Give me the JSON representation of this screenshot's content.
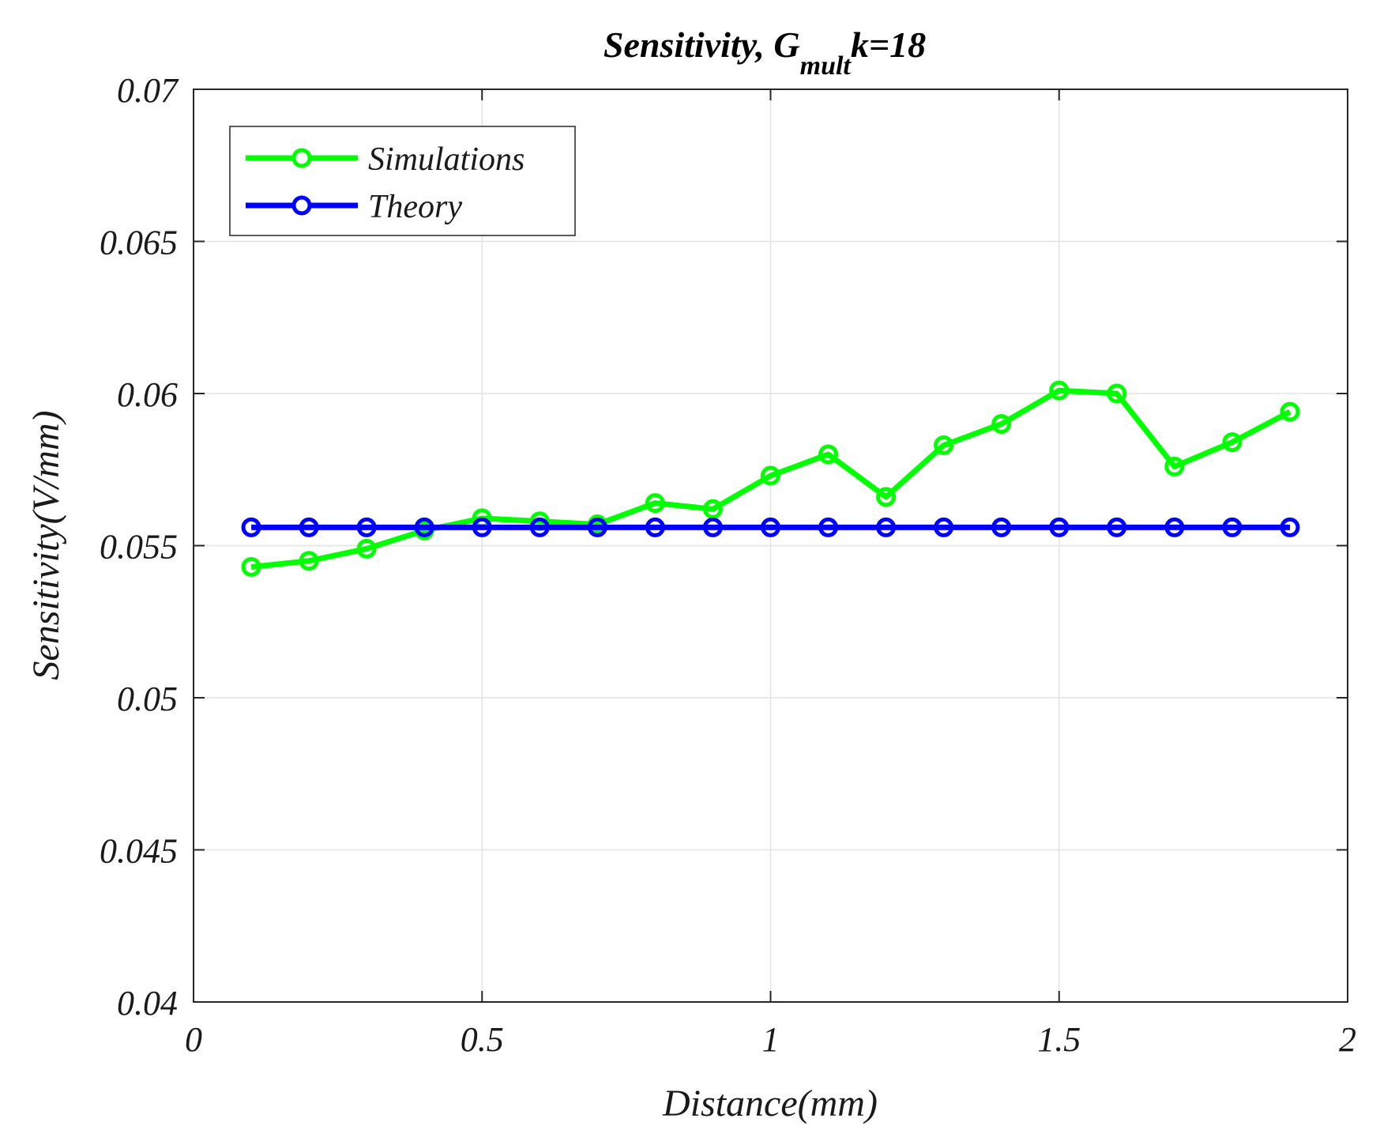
{
  "chart_data": {
    "type": "line",
    "title_main": "Sensitivity, G",
    "title_sub": "mult",
    "title_tail": "k=18",
    "xlabel": "Distance(mm)",
    "ylabel": "Sensitivity(V/mm)",
    "xlim": [
      0,
      2
    ],
    "ylim": [
      0.04,
      0.07
    ],
    "xticks": [
      0,
      0.5,
      1,
      1.5,
      2
    ],
    "xtick_labels": [
      "0",
      "0.5",
      "1",
      "1.5",
      "2"
    ],
    "yticks": [
      0.04,
      0.045,
      0.05,
      0.055,
      0.06,
      0.065,
      0.07
    ],
    "ytick_labels": [
      "0.04",
      "0.045",
      "0.05",
      "0.055",
      "0.06",
      "0.065",
      "0.07"
    ],
    "grid": true,
    "legend_position": "top-left",
    "x": [
      0.1,
      0.2,
      0.3,
      0.4,
      0.5,
      0.6,
      0.7,
      0.8,
      0.9,
      1.0,
      1.1,
      1.2,
      1.3,
      1.4,
      1.5,
      1.6,
      1.7,
      1.8,
      1.9
    ],
    "series": [
      {
        "name": "Simulations",
        "color": "#00ff00",
        "marker": "circle",
        "values": [
          0.0543,
          0.0545,
          0.0549,
          0.0555,
          0.0559,
          0.0558,
          0.0557,
          0.0564,
          0.0562,
          0.0573,
          0.058,
          0.0566,
          0.0583,
          0.059,
          0.0601,
          0.06,
          0.0576,
          0.0584,
          0.0594
        ]
      },
      {
        "name": "Theory",
        "color": "#0000ff",
        "marker": "circle",
        "values": [
          0.0556,
          0.0556,
          0.0556,
          0.0556,
          0.0556,
          0.0556,
          0.0556,
          0.0556,
          0.0556,
          0.0556,
          0.0556,
          0.0556,
          0.0556,
          0.0556,
          0.0556,
          0.0556,
          0.0556,
          0.0556,
          0.0556
        ]
      }
    ]
  }
}
